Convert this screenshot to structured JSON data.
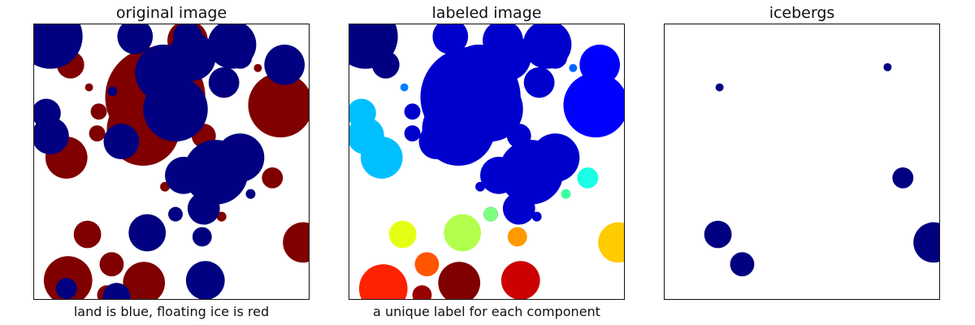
{
  "panels": [
    {
      "title": "original image",
      "caption": "land is blue, floating ice is red"
    },
    {
      "title": "labeled image",
      "caption": "a unique label for each component"
    },
    {
      "title": "icebergs",
      "caption": ""
    }
  ],
  "colors": {
    "land": "#000080",
    "ice": "#800000",
    "background": "#ffffff",
    "frame": "#111111"
  },
  "colormap": "jet"
}
